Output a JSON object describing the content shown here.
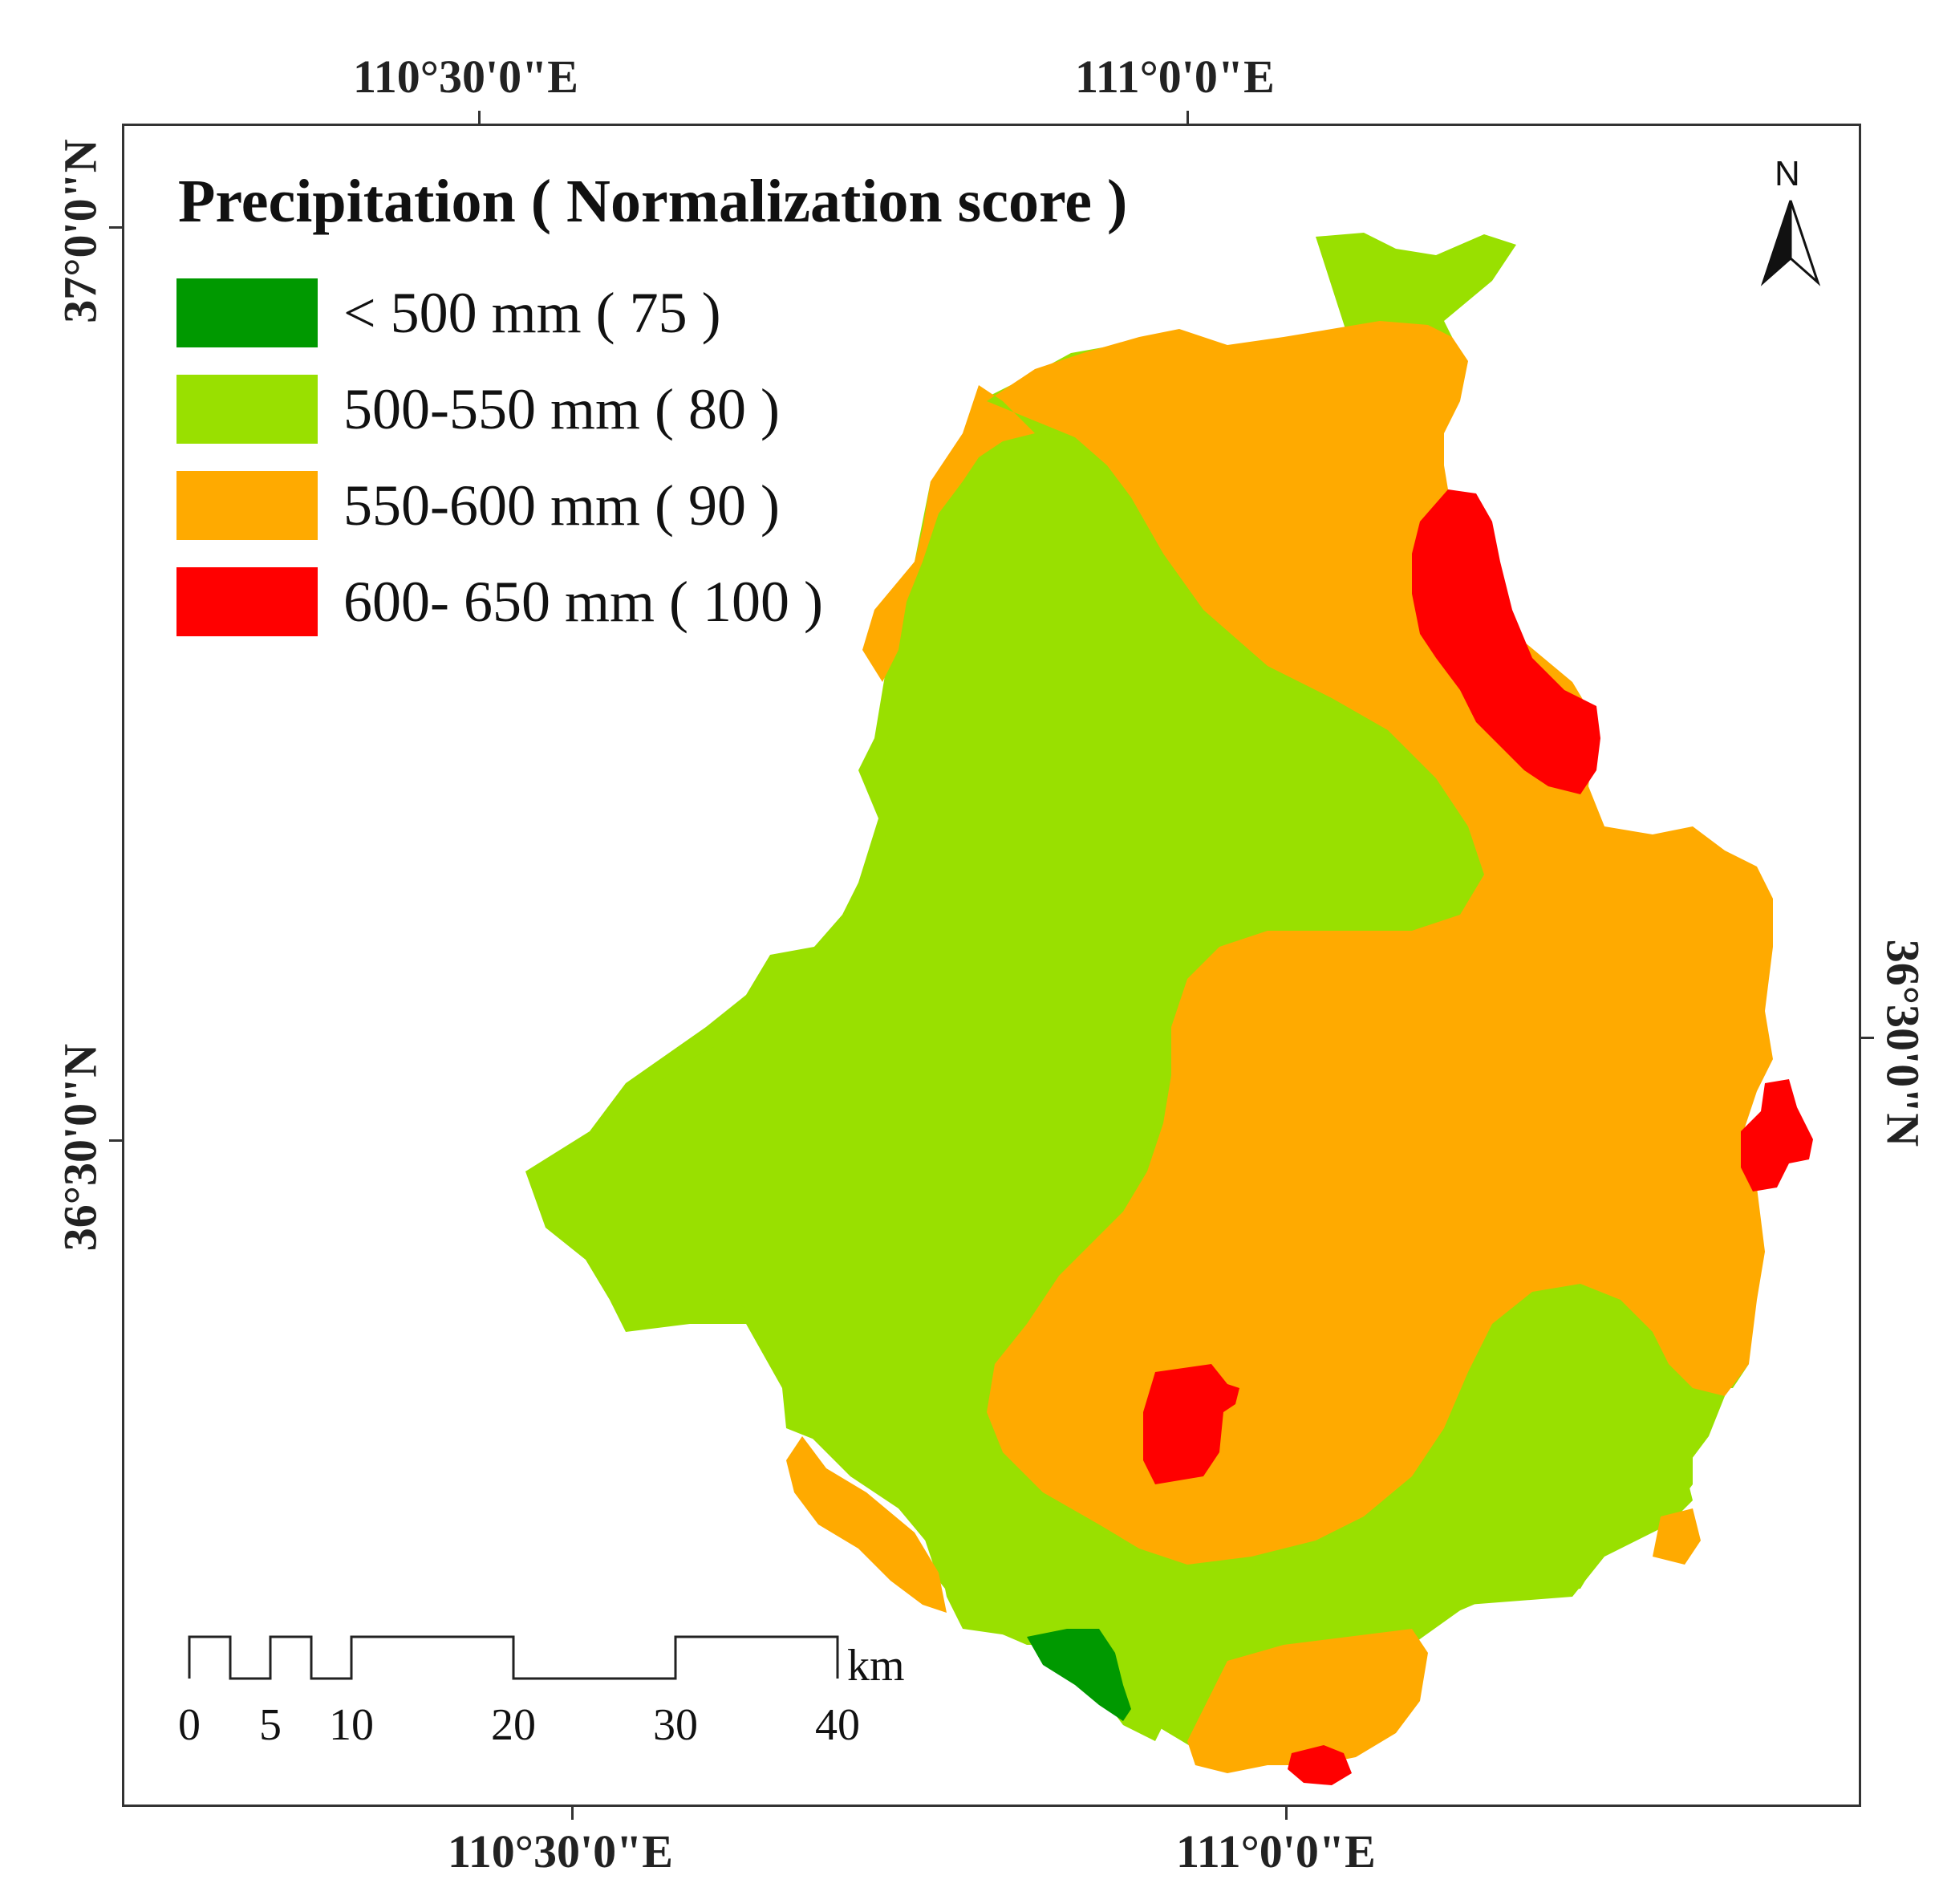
{
  "map": {
    "title": "Precipitation ( Normalization score )",
    "legend": [
      {
        "label": "< 500 mm ( 75 )",
        "color": "#009900"
      },
      {
        "label": "500-550 mm ( 80 )",
        "color": "#99e000"
      },
      {
        "label": "550-600 mm ( 90 )",
        "color": "#ffaa00"
      },
      {
        "label": "600- 650 mm ( 100 )",
        "color": "#ff0000"
      }
    ],
    "coordinates": {
      "top_left_lon": "110°30'0\"E",
      "top_right_lon": "111°0'0\"E",
      "bottom_left_lon": "110°30'0\"E",
      "bottom_right_lon": "111°0'0\"E",
      "left_top_lat": "37°0'0\"N",
      "left_bottom_lat": "36°30'0\"N",
      "right_lat": "36°30'0\"N"
    },
    "north_arrow": {
      "label": "N",
      "icon": "north-arrow-icon"
    },
    "scale_bar": {
      "labels": [
        "0",
        "5",
        "10",
        "20",
        "30",
        "40"
      ],
      "unit": "km"
    }
  }
}
